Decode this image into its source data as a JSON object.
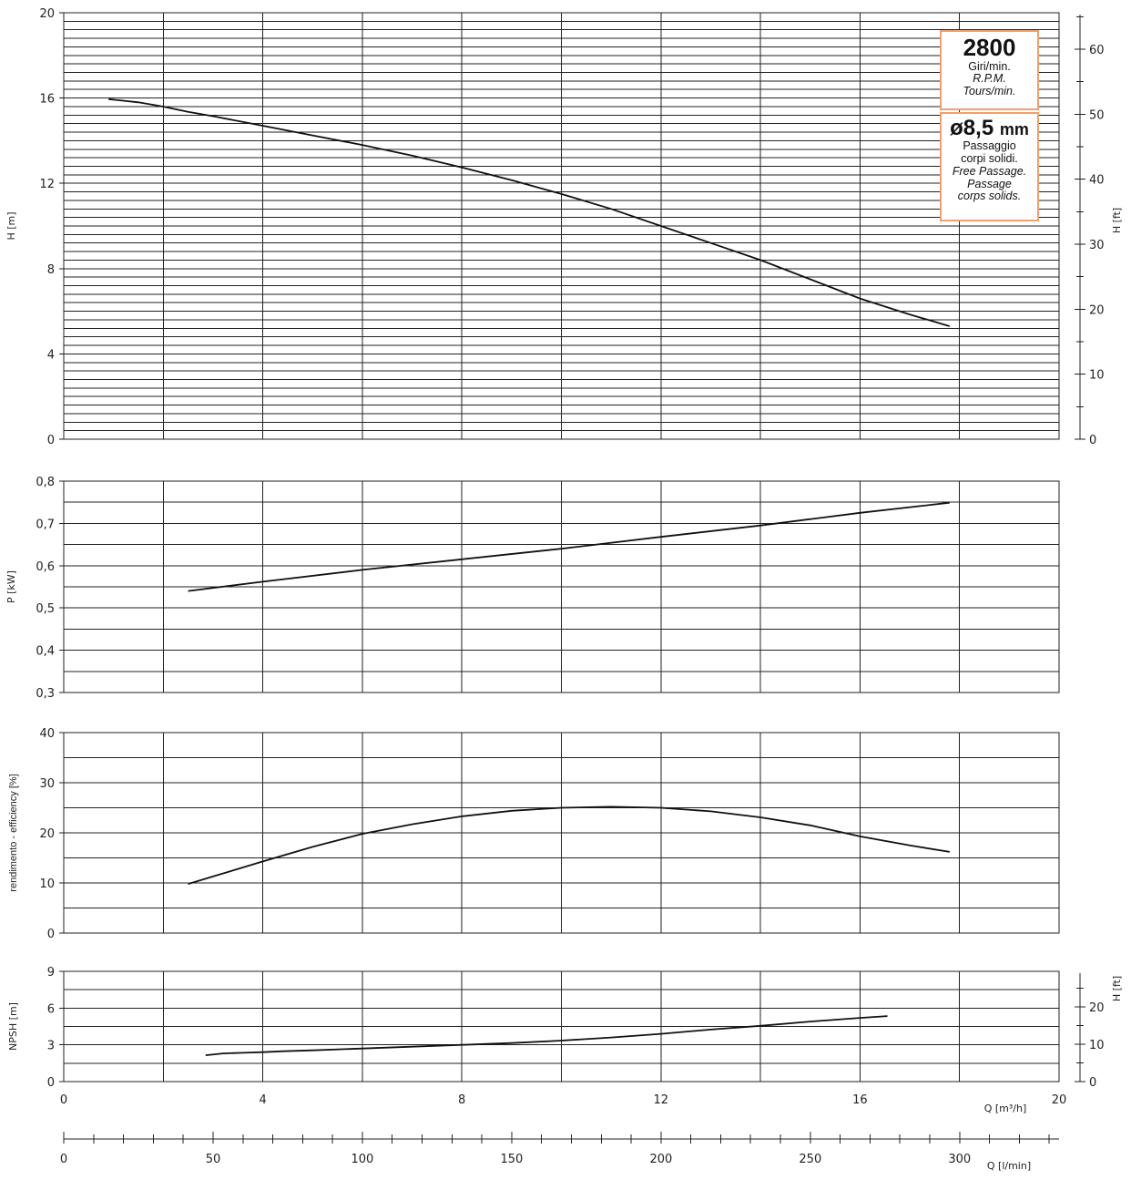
{
  "info_boxes": {
    "speed": {
      "value": "2800",
      "line1": "Giri/min.",
      "line2": "R.P.M.",
      "line3": "Tours/min."
    },
    "passage": {
      "value": "ø8,5",
      "unit": "mm",
      "line1": "Passaggio",
      "line2": "corpi solidi.",
      "line3": "Free Passage.",
      "line4": "Passage",
      "line5": "corps solids."
    }
  },
  "chart_data": [
    {
      "type": "line",
      "ylabel": "H [m]",
      "y2label": "H [ft]",
      "ylim": [
        0,
        20
      ],
      "yticks": [
        "0",
        "4",
        "8",
        "12",
        "16",
        "20"
      ],
      "y2lim": [
        0,
        65.6
      ],
      "y2ticks": [
        "0",
        "10",
        "20",
        "30",
        "40",
        "50",
        "60"
      ],
      "xlim": [
        0,
        20
      ],
      "grid": true,
      "series": [
        {
          "x": [
            0.9,
            1.5,
            2.0,
            2.5,
            3.0,
            4.0,
            5.0,
            6.0,
            7.0,
            8.0,
            9.0,
            10.0,
            11.0,
            12.0,
            13.0,
            14.0,
            15.0,
            16.0,
            17.0,
            17.8
          ],
          "y": [
            15.95,
            15.8,
            15.6,
            15.35,
            15.15,
            14.7,
            14.25,
            13.8,
            13.3,
            12.75,
            12.15,
            11.5,
            10.8,
            10.0,
            9.2,
            8.4,
            7.5,
            6.6,
            5.85,
            5.3
          ]
        }
      ]
    },
    {
      "type": "line",
      "ylabel": "P [kW]",
      "ylim": [
        0.3,
        0.8
      ],
      "yticks": [
        "0,3",
        "0,4",
        "0,5",
        "0,6",
        "0,7",
        "0,8"
      ],
      "xlim": [
        0,
        20
      ],
      "grid": true,
      "series": [
        {
          "x": [
            2.5,
            4,
            6,
            8,
            10,
            12,
            14,
            16,
            17.8
          ],
          "y": [
            0.54,
            0.562,
            0.59,
            0.615,
            0.64,
            0.668,
            0.695,
            0.725,
            0.749
          ]
        }
      ]
    },
    {
      "type": "line",
      "ylabel": "rendimento - efficiency [%]",
      "ylim": [
        0,
        40
      ],
      "yticks": [
        "0",
        "10",
        "20",
        "30",
        "40"
      ],
      "xlim": [
        0,
        20
      ],
      "grid": true,
      "series": [
        {
          "x": [
            2.5,
            3,
            4,
            5,
            6,
            7,
            8,
            9,
            10,
            11,
            12,
            13,
            14,
            15,
            16,
            17,
            17.8
          ],
          "y": [
            9.8,
            11.3,
            14.3,
            17.2,
            19.8,
            21.7,
            23.3,
            24.4,
            25.0,
            25.2,
            25.0,
            24.3,
            23.1,
            21.5,
            19.3,
            17.5,
            16.2
          ]
        }
      ]
    },
    {
      "type": "line",
      "ylabel": "NPSH [m]",
      "y2label": "H [ft]",
      "ylim": [
        0,
        9
      ],
      "yticks": [
        "0",
        "3",
        "6",
        "9"
      ],
      "y2lim": [
        0,
        29.5
      ],
      "y2ticks": [
        "0",
        "10",
        "20"
      ],
      "xlim": [
        0,
        20
      ],
      "xticks": [
        "0",
        "4",
        "8",
        "12",
        "16",
        "20"
      ],
      "xlabel": "Q [m³/h]",
      "grid": true,
      "series": [
        {
          "x": [
            2.85,
            3.2,
            3.6,
            4.0,
            4.4,
            5,
            6,
            7,
            8,
            9,
            10,
            11,
            12,
            13,
            14,
            15,
            16,
            16.55
          ],
          "y": [
            2.15,
            2.3,
            2.35,
            2.4,
            2.48,
            2.55,
            2.7,
            2.85,
            3.0,
            3.15,
            3.35,
            3.6,
            3.9,
            4.25,
            4.55,
            4.9,
            5.2,
            5.35
          ]
        }
      ]
    },
    {
      "type": "axis",
      "xlabel": "Q [l/min]",
      "xlim": [
        0,
        333.3
      ],
      "xticks": [
        "0",
        "50",
        "100",
        "150",
        "200",
        "250",
        "300"
      ]
    }
  ]
}
